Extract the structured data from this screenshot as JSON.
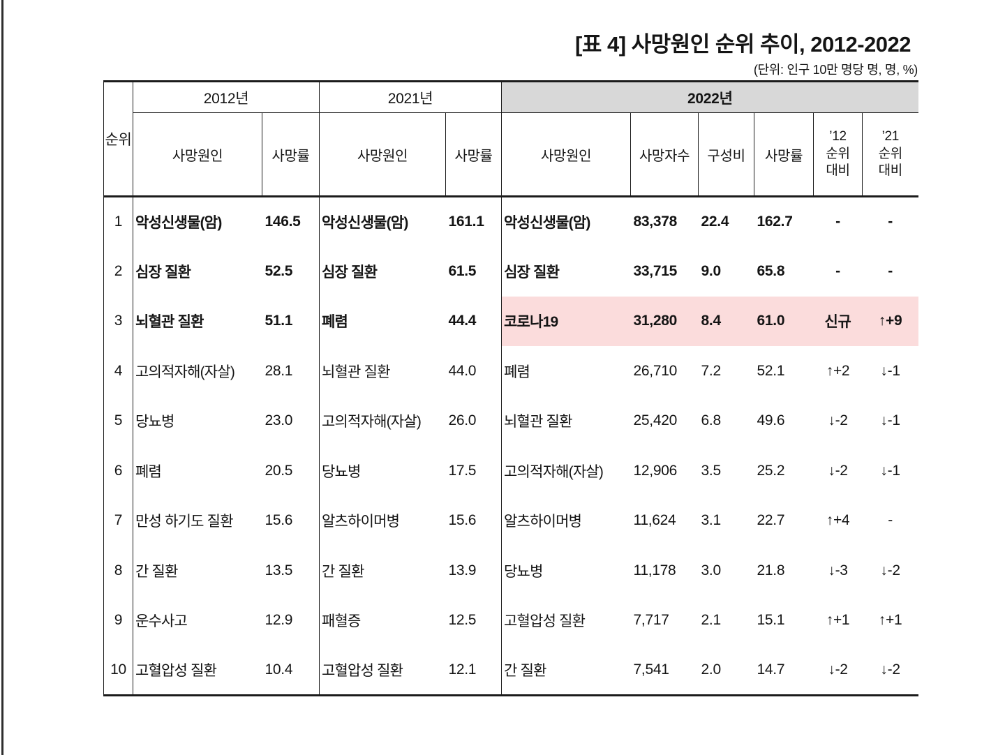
{
  "page": {
    "title": "[표 4] 사망원인 순위 추이, 2012-2022",
    "unit_note": "(단위: 인구 10만 명당 명, 명, %)"
  },
  "colors": {
    "highlight_pink": "#fbdcdc",
    "header_gray": "#d8d8d8",
    "border": "#1b1b1b"
  },
  "table": {
    "rank_header": "순위",
    "groups": [
      {
        "label": "2012년",
        "columns": [
          "사망원인",
          "사망률"
        ]
      },
      {
        "label": "2021년",
        "columns": [
          "사망원인",
          "사망률"
        ]
      },
      {
        "label": "2022년",
        "columns": [
          "사망원인",
          "사망자수",
          "구성비",
          "사망률",
          "’12\n순위\n대비",
          "’21\n순위\n대비"
        ]
      }
    ],
    "rows": [
      {
        "rank": "1",
        "cause_2012": "악성신생물(암)",
        "rate_2012": "146.5",
        "cause_2021": "악성신생물(암)",
        "rate_2021": "161.1",
        "cause_2022": "악성신생물(암)",
        "deaths_2022": "83,378",
        "share_2022": "22.4",
        "rate_2022": "162.7",
        "vs_2012_rank": "-",
        "vs_2021_rank": "-",
        "bold": true,
        "highlight": false
      },
      {
        "rank": "2",
        "cause_2012": "심장 질환",
        "rate_2012": "52.5",
        "cause_2021": "심장 질환",
        "rate_2021": "61.5",
        "cause_2022": "심장 질환",
        "deaths_2022": "33,715",
        "share_2022": "9.0",
        "rate_2022": "65.8",
        "vs_2012_rank": "-",
        "vs_2021_rank": "-",
        "bold": true,
        "highlight": false
      },
      {
        "rank": "3",
        "cause_2012": "뇌혈관 질환",
        "rate_2012": "51.1",
        "cause_2021": "폐렴",
        "rate_2021": "44.4",
        "cause_2022": "코로나19",
        "deaths_2022": "31,280",
        "share_2022": "8.4",
        "rate_2022": "61.0",
        "vs_2012_rank": "신규",
        "vs_2021_rank": "↑+9",
        "bold": true,
        "highlight": true
      },
      {
        "rank": "4",
        "cause_2012": "고의적자해(자살)",
        "rate_2012": "28.1",
        "cause_2021": "뇌혈관 질환",
        "rate_2021": "44.0",
        "cause_2022": "폐렴",
        "deaths_2022": "26,710",
        "share_2022": "7.2",
        "rate_2022": "52.1",
        "vs_2012_rank": "↑+2",
        "vs_2021_rank": "↓-1",
        "bold": false,
        "highlight": false
      },
      {
        "rank": "5",
        "cause_2012": "당뇨병",
        "rate_2012": "23.0",
        "cause_2021": "고의적자해(자살)",
        "rate_2021": "26.0",
        "cause_2022": "뇌혈관 질환",
        "deaths_2022": "25,420",
        "share_2022": "6.8",
        "rate_2022": "49.6",
        "vs_2012_rank": "↓-2",
        "vs_2021_rank": "↓-1",
        "bold": false,
        "highlight": false
      },
      {
        "rank": "6",
        "cause_2012": "폐렴",
        "rate_2012": "20.5",
        "cause_2021": "당뇨병",
        "rate_2021": "17.5",
        "cause_2022": "고의적자해(자살)",
        "deaths_2022": "12,906",
        "share_2022": "3.5",
        "rate_2022": "25.2",
        "vs_2012_rank": "↓-2",
        "vs_2021_rank": "↓-1",
        "bold": false,
        "highlight": false
      },
      {
        "rank": "7",
        "cause_2012": "만성 하기도 질환",
        "rate_2012": "15.6",
        "cause_2021": "알츠하이머병",
        "rate_2021": "15.6",
        "cause_2022": "알츠하이머병",
        "deaths_2022": "11,624",
        "share_2022": "3.1",
        "rate_2022": "22.7",
        "vs_2012_rank": "↑+4",
        "vs_2021_rank": "-",
        "bold": false,
        "highlight": false
      },
      {
        "rank": "8",
        "cause_2012": "간 질환",
        "rate_2012": "13.5",
        "cause_2021": "간 질환",
        "rate_2021": "13.9",
        "cause_2022": "당뇨병",
        "deaths_2022": "11,178",
        "share_2022": "3.0",
        "rate_2022": "21.8",
        "vs_2012_rank": "↓-3",
        "vs_2021_rank": "↓-2",
        "bold": false,
        "highlight": false
      },
      {
        "rank": "9",
        "cause_2012": "운수사고",
        "rate_2012": "12.9",
        "cause_2021": "패혈증",
        "rate_2021": "12.5",
        "cause_2022": "고혈압성 질환",
        "deaths_2022": "7,717",
        "share_2022": "2.1",
        "rate_2022": "15.1",
        "vs_2012_rank": "↑+1",
        "vs_2021_rank": "↑+1",
        "bold": false,
        "highlight": false
      },
      {
        "rank": "10",
        "cause_2012": "고혈압성 질환",
        "rate_2012": "10.4",
        "cause_2021": "고혈압성 질환",
        "rate_2021": "12.1",
        "cause_2022": "간 질환",
        "deaths_2022": "7,541",
        "share_2022": "2.0",
        "rate_2022": "14.7",
        "vs_2012_rank": "↓-2",
        "vs_2021_rank": "↓-2",
        "bold": false,
        "highlight": false
      }
    ]
  }
}
